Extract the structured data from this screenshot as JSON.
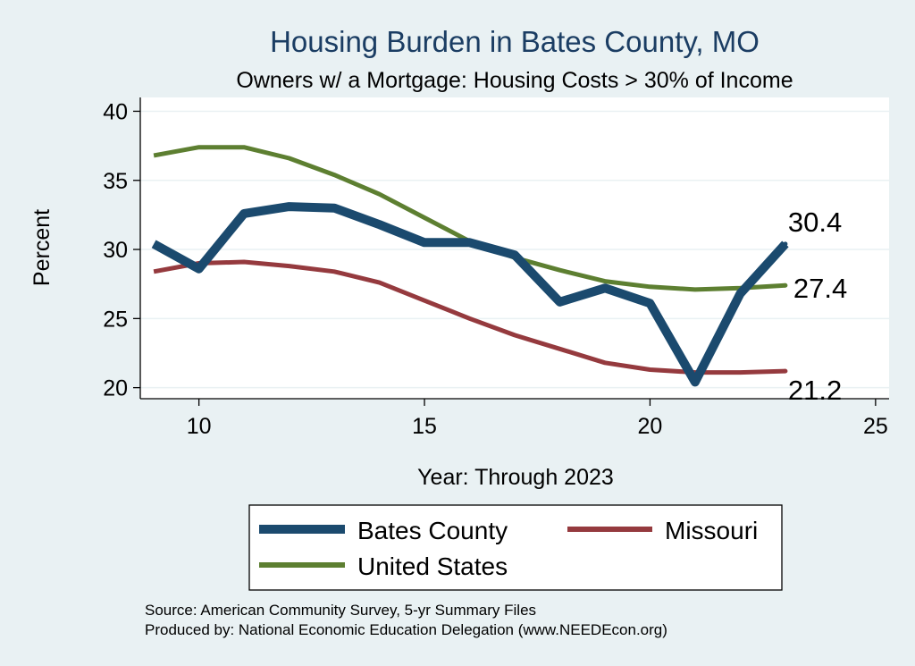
{
  "chart_data": {
    "type": "line",
    "title": "Housing Burden in Bates County, MO",
    "subtitle": "Owners w/ a Mortgage: Housing Costs > 30% of Income",
    "xlabel": "Year: Through 2023",
    "ylabel": "Percent",
    "xlim": [
      8.7,
      25.3
    ],
    "ylim": [
      19.2,
      41.0
    ],
    "xticks": [
      10,
      15,
      20,
      25
    ],
    "yticks": [
      20,
      25,
      30,
      35,
      40
    ],
    "grid": true,
    "x": [
      9,
      10,
      11,
      12,
      13,
      14,
      15,
      16,
      17,
      18,
      19,
      20,
      21,
      22,
      23
    ],
    "series": [
      {
        "name": "Bates County",
        "color": "#1b4a6e",
        "width": "thick",
        "values": [
          30.4,
          28.6,
          32.6,
          33.1,
          33.0,
          31.8,
          30.5,
          30.5,
          29.6,
          26.2,
          27.2,
          26.1,
          20.4,
          26.8,
          30.4
        ],
        "end_label": "30.4"
      },
      {
        "name": "Missouri",
        "color": "#953a3e",
        "width": "medium",
        "values": [
          28.4,
          29.0,
          29.1,
          28.8,
          28.4,
          27.6,
          26.3,
          25.0,
          23.8,
          22.8,
          21.8,
          21.3,
          21.1,
          21.1,
          21.2
        ],
        "end_label": "21.2"
      },
      {
        "name": "United States",
        "color": "#5d7f31",
        "width": "medium",
        "values": [
          36.8,
          37.4,
          37.4,
          36.6,
          35.4,
          34.0,
          32.3,
          30.6,
          29.4,
          28.5,
          27.7,
          27.3,
          27.1,
          27.2,
          27.4
        ],
        "end_label": "27.4"
      }
    ],
    "legend": {
      "placement": "bottom",
      "entries": [
        "Bates County",
        "Missouri",
        "United States"
      ]
    },
    "notes": [
      "Source: American Community Survey, 5-yr Summary Files",
      "Produced by: National Economic Education Delegation (www.NEEDEcon.org)"
    ]
  }
}
